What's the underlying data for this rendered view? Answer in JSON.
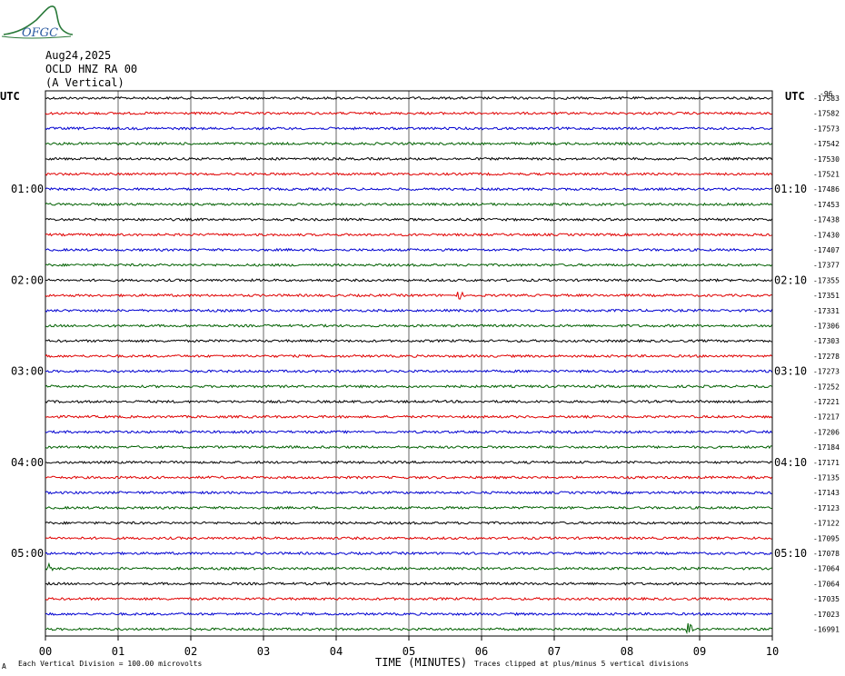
{
  "header": {
    "date": "Aug24,2025",
    "station": "OCLD HNZ RA 00",
    "component": "(A Vertical)"
  },
  "logo": {
    "text": "OFGC",
    "icon": "mountain-wave-logo",
    "color": "#2a7a3a"
  },
  "colors": [
    "#000000",
    "#e00000",
    "#0000d0",
    "#006000"
  ],
  "chart_data": {
    "type": "line",
    "left_axis_title": "UTC",
    "right_axis_title": "UTC",
    "left_time_labels": [
      {
        "label": "01:00",
        "row": 6
      },
      {
        "label": "02:00",
        "row": 12
      },
      {
        "label": "03:00",
        "row": 18
      },
      {
        "label": "04:00",
        "row": 24
      },
      {
        "label": "05:00",
        "row": 30
      }
    ],
    "right_time_labels": [
      {
        "label": "01:10",
        "row": 6
      },
      {
        "label": "02:10",
        "row": 12
      },
      {
        "label": "03:10",
        "row": 18
      },
      {
        "label": "04:10",
        "row": 24
      },
      {
        "label": "05:10",
        "row": 30
      }
    ],
    "right_top_label": "-96",
    "trace_offsets": [
      -17583,
      -17582,
      -17573,
      -17542,
      -17530,
      -17521,
      -17486,
      -17453,
      -17438,
      -17430,
      -17407,
      -17377,
      -17355,
      -17351,
      -17331,
      -17306,
      -17303,
      -17278,
      -17273,
      -17252,
      -17221,
      -17217,
      -17206,
      -17184,
      -17171,
      -17135,
      -17143,
      -17123,
      -17122,
      -17095,
      -17078,
      -17064,
      -17064,
      -17035,
      -17023,
      -16991
    ],
    "events": [
      {
        "row": 13,
        "minute": 5.7,
        "amp": 5
      },
      {
        "row": 31,
        "minute": 0.05,
        "amp": 6
      },
      {
        "row": 35,
        "minute": 8.85,
        "amp": 9
      }
    ],
    "x_ticks": [
      "00",
      "01",
      "02",
      "03",
      "04",
      "05",
      "06",
      "07",
      "08",
      "09",
      "10"
    ],
    "xlabel": "TIME (MINUTES)",
    "xlim": [
      0,
      10
    ],
    "grid": true
  },
  "footer": {
    "scale_note": "Each Vertical Division =  100.00 microvolts",
    "clip_note": "Traces clipped at plus/minus 5 vertical divisions",
    "corner_mark": "A"
  }
}
